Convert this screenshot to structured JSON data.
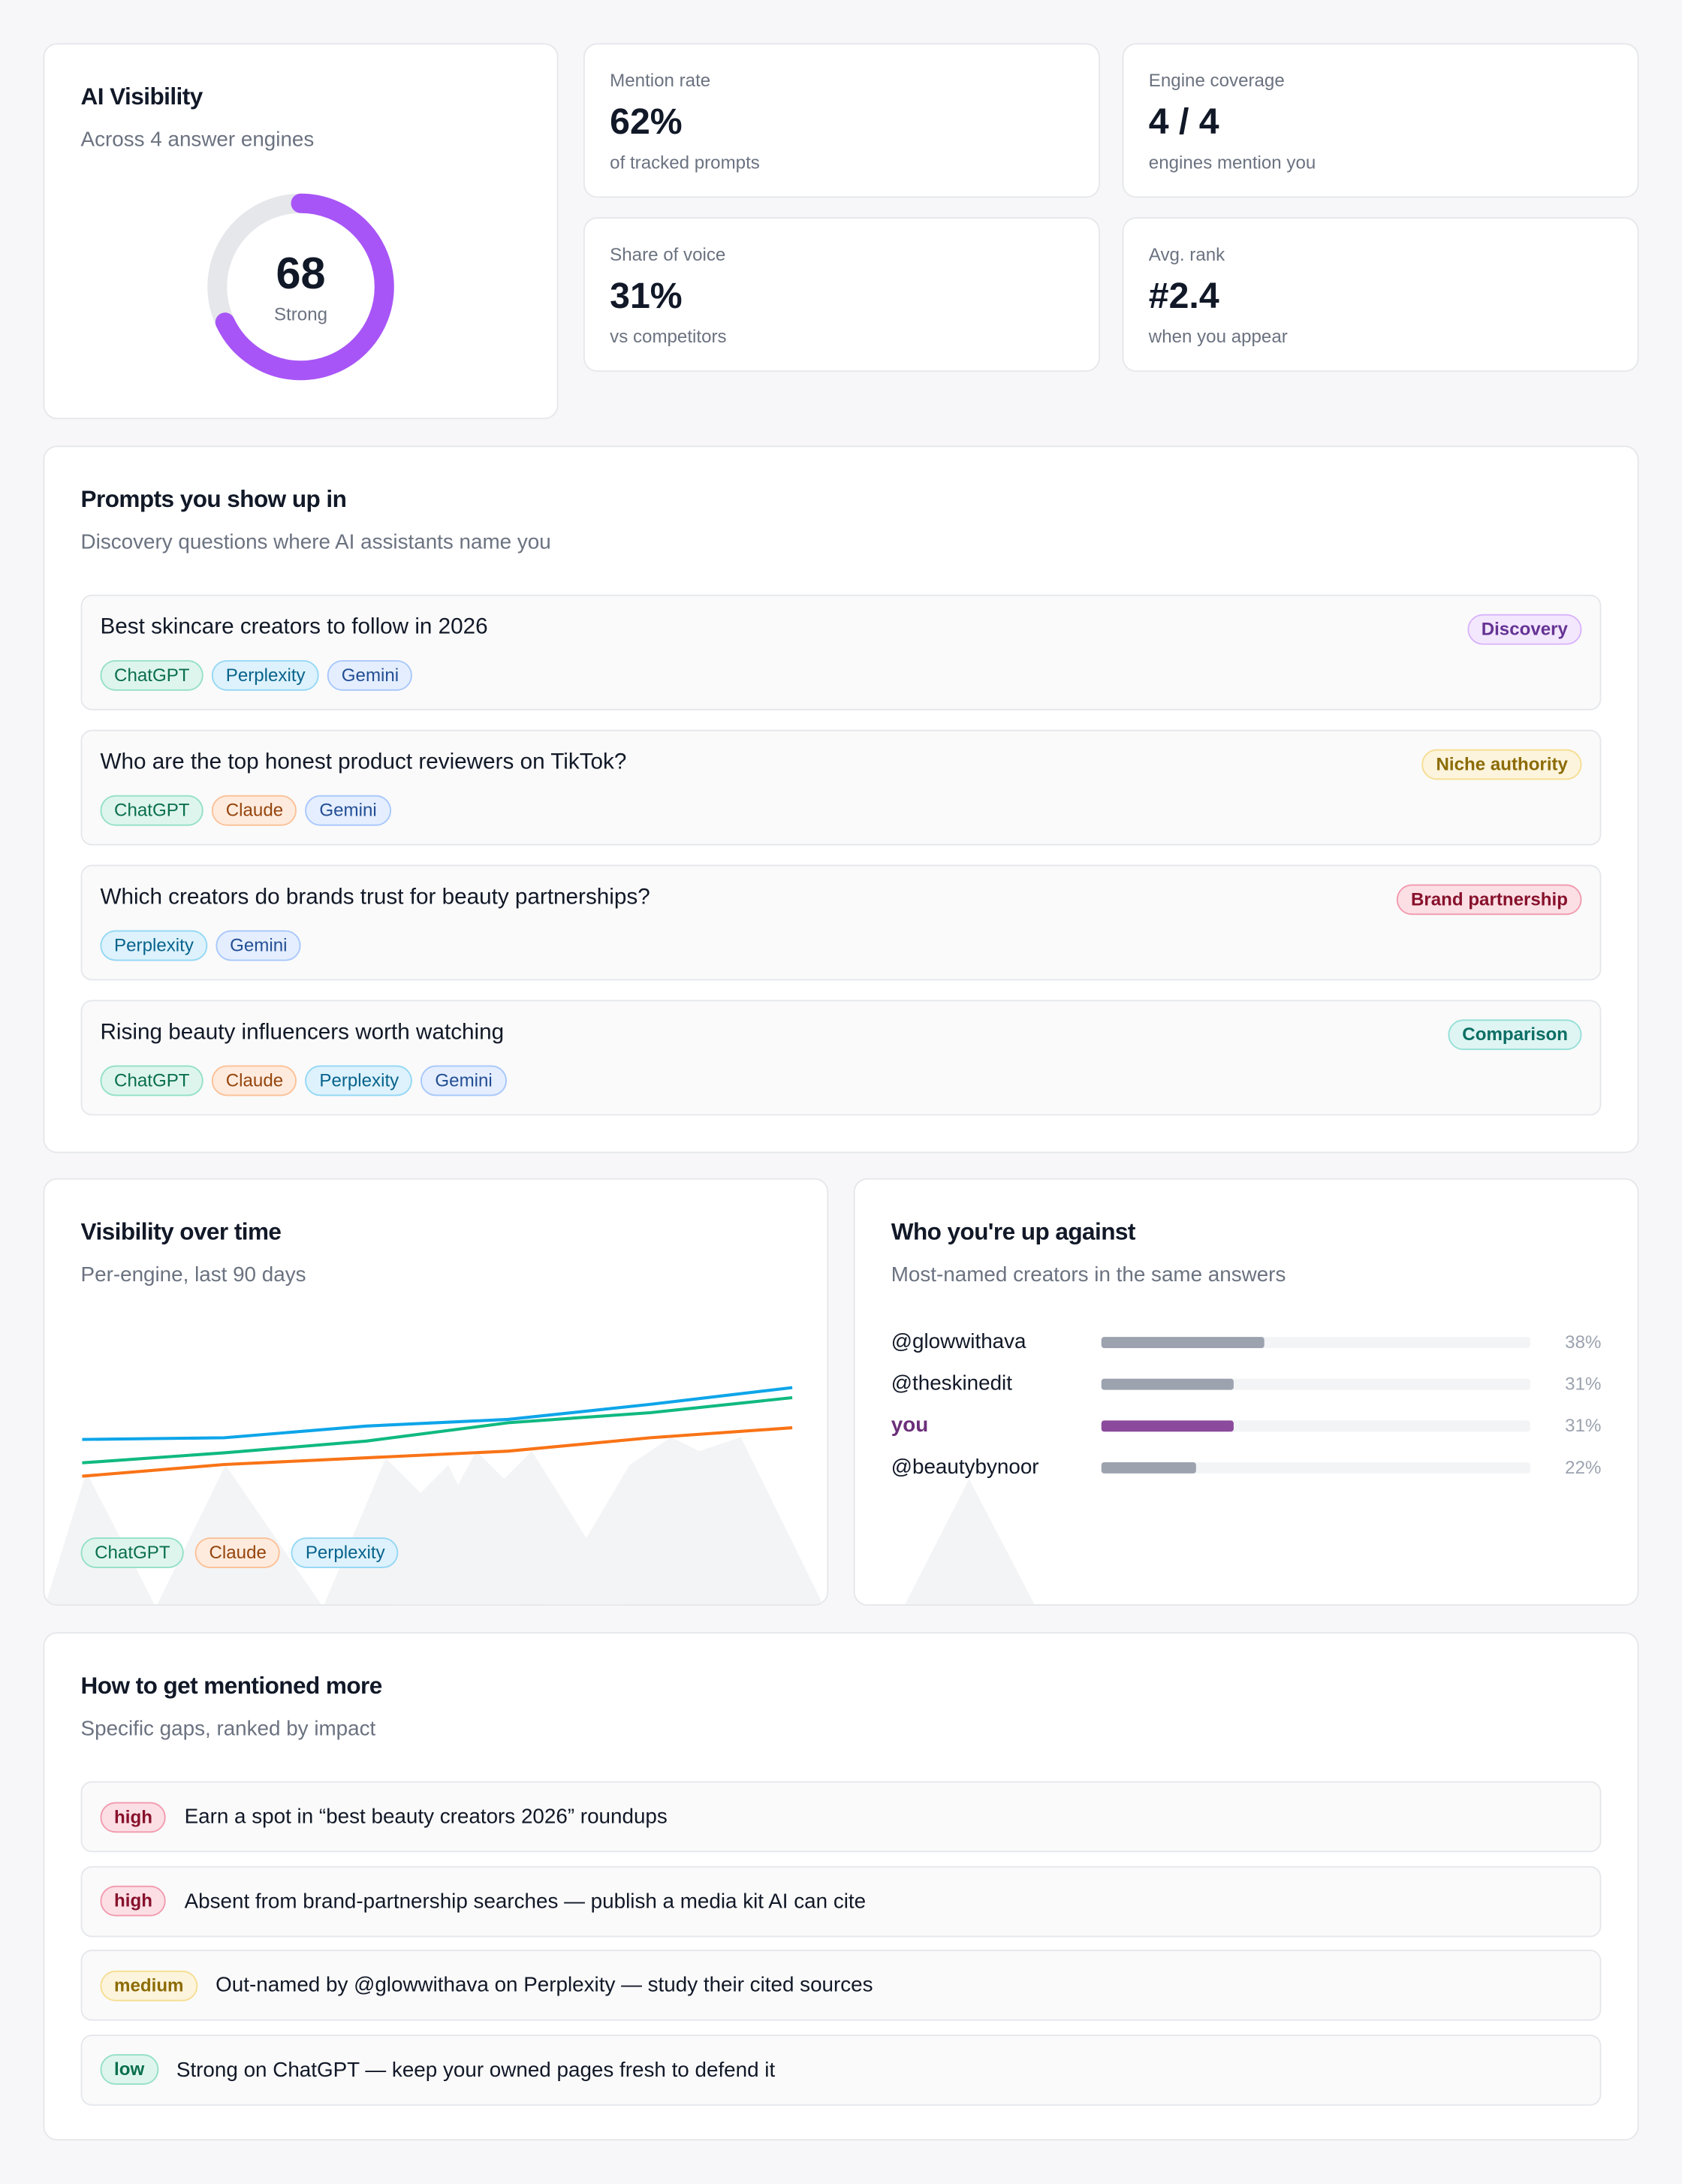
{
  "score_card": {
    "title": "AI Visibility",
    "subtitle": "Across 4 answer engines",
    "score": 68,
    "lim": [
      0,
      100
    ],
    "label": "Strong",
    "color": "#a855f7"
  },
  "metrics": [
    {
      "label": "Mention rate",
      "value": "62%",
      "note": "of tracked prompts"
    },
    {
      "label": "Engine coverage",
      "value": "4 / 4",
      "note": "engines mention you"
    },
    {
      "label": "Share of voice",
      "value": "31%",
      "note": "vs competitors"
    },
    {
      "label": "Avg. rank",
      "value": "#2.4",
      "note": "when you appear"
    }
  ],
  "engines": [
    {
      "name": "ChatGPT",
      "color": "#10b981"
    },
    {
      "name": "Perplexity",
      "color": "#0ea5e9"
    },
    {
      "name": "Gemini",
      "color": "#3b82f6"
    },
    {
      "name": "Claude",
      "color": "#f97316"
    }
  ],
  "prompts": {
    "title": "Prompts you show up in",
    "subtitle": "Discovery questions where AI assistants name you",
    "items": [
      {
        "question": "Best skincare creators to follow in 2026",
        "tag": "Discovery",
        "tag_color": "#a855f7",
        "engines": [
          "ChatGPT",
          "Perplexity",
          "Gemini"
        ]
      },
      {
        "question": "Who are the top honest product reviewers on TikTok?",
        "tag": "Niche authority",
        "tag_color": "#eab308",
        "engines": [
          "ChatGPT",
          "Claude",
          "Gemini"
        ]
      },
      {
        "question": "Which creators do brands trust for beauty partnerships?",
        "tag": "Brand partnership",
        "tag_color": "#e11d48",
        "engines": [
          "Perplexity",
          "Gemini"
        ]
      },
      {
        "question": "Rising beauty influencers worth watching",
        "tag": "Comparison",
        "tag_color": "#14b8a6",
        "engines": [
          "ChatGPT",
          "Claude",
          "Perplexity",
          "Gemini"
        ]
      }
    ]
  },
  "chart_data": [
    {
      "type": "line",
      "title": "Visibility over time",
      "subtitle": "Per-engine, last 90 days",
      "categories": [
        null,
        null,
        null,
        null,
        null,
        null
      ],
      "ylim": [
        0,
        100
      ],
      "series": [
        {
          "name": "ChatGPT",
          "color": "#10b981",
          "values": [
            38,
            44,
            51,
            62,
            68,
            77
          ]
        },
        {
          "name": "Claude",
          "color": "#f97316",
          "values": [
            30,
            37,
            41,
            45,
            53,
            59
          ]
        },
        {
          "name": "Perplexity",
          "color": "#0ea5e9",
          "values": [
            52,
            53,
            60,
            64,
            73,
            83
          ]
        }
      ]
    },
    {
      "type": "bar",
      "title": "Who you're up against",
      "subtitle": "Most-named creators in the same answers",
      "categories": [
        "@glowwithava",
        "@theskinedit",
        "you",
        "@beautybynoor"
      ],
      "values": [
        38,
        31,
        31,
        22
      ],
      "value_labels": [
        "38%",
        "31%",
        "31%",
        "22%"
      ],
      "xlim": [
        0,
        100
      ],
      "colors": [
        "#9ca3af",
        "#9ca3af",
        "#8b4a9c",
        "#9ca3af"
      ],
      "label_colors": [
        "#111827",
        "#111827",
        "#6b2f7a",
        "#111827"
      ]
    }
  ],
  "recommendations": {
    "title": "How to get mentioned more",
    "subtitle": "Specific gaps, ranked by impact",
    "items": [
      {
        "priority": "high",
        "priority_color": "#e11d48",
        "text": "Earn a spot in “best beauty creators 2026” roundups"
      },
      {
        "priority": "high",
        "priority_color": "#e11d48",
        "text": "Absent from brand-partnership searches — publish a media kit AI can cite"
      },
      {
        "priority": "medium",
        "priority_color": "#eab308",
        "text": "Out-named by @glowwithava on Perplexity — study their cited sources"
      },
      {
        "priority": "low",
        "priority_color": "#10b981",
        "text": "Strong on ChatGPT — keep your owned pages fresh to defend it"
      }
    ]
  }
}
